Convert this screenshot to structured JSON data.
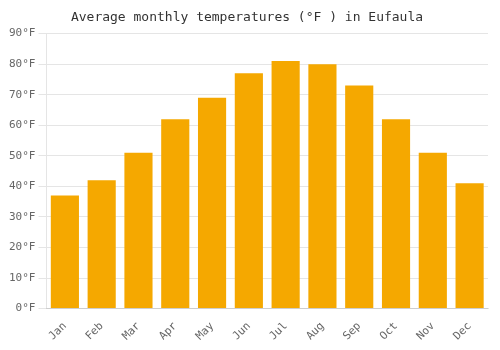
{
  "chart_data": {
    "type": "bar",
    "title": "Average monthly temperatures (°F ) in Eufaula",
    "categories": [
      "Jan",
      "Feb",
      "Mar",
      "Apr",
      "May",
      "Jun",
      "Jul",
      "Aug",
      "Sep",
      "Oct",
      "Nov",
      "Dec"
    ],
    "values": [
      37,
      42,
      51,
      62,
      69,
      77,
      81,
      80,
      73,
      62,
      51,
      41
    ],
    "color": "#F5A800",
    "ylim": [
      0,
      90
    ],
    "yticks": [
      {
        "value": 0,
        "label": "0°F"
      },
      {
        "value": 10,
        "label": "10°F"
      },
      {
        "value": 20,
        "label": "20°F"
      },
      {
        "value": 30,
        "label": "30°F"
      },
      {
        "value": 40,
        "label": "40°F"
      },
      {
        "value": 50,
        "label": "50°F"
      },
      {
        "value": 60,
        "label": "60°F"
      },
      {
        "value": 70,
        "label": "70°F"
      },
      {
        "value": 80,
        "label": "80°F"
      },
      {
        "value": 90,
        "label": "90°F"
      }
    ],
    "grid": true
  }
}
